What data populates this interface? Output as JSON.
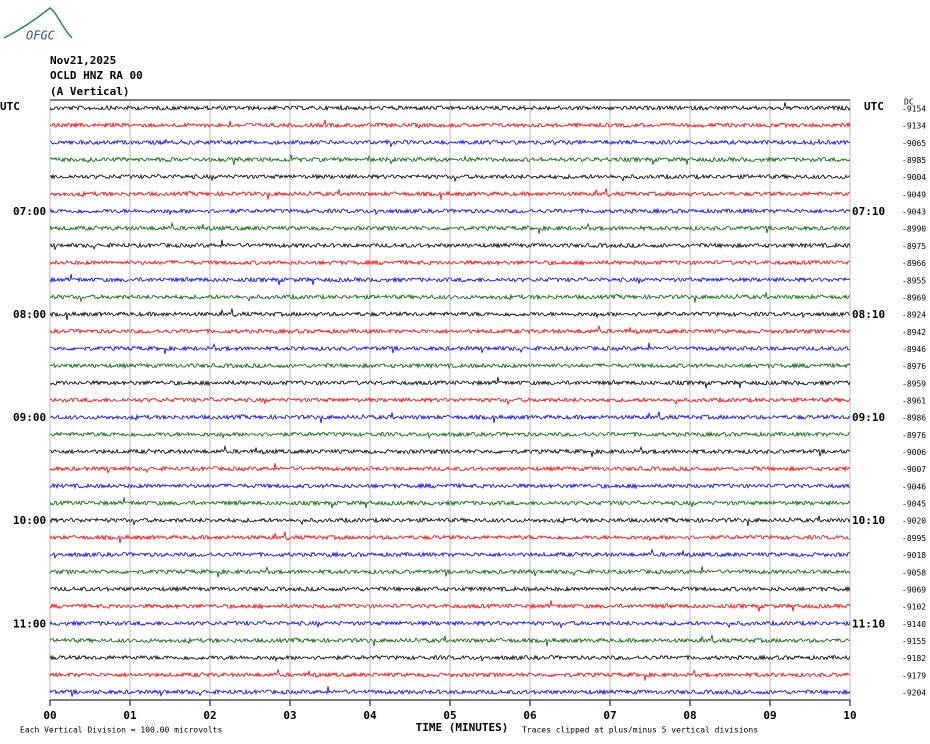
{
  "logo": "OFGC",
  "header": {
    "date": "Nov21,2025",
    "station": "OCLD HNZ RA 00",
    "component": "(A Vertical)"
  },
  "left_labels": {
    "top": "UTC",
    "rows": [
      {
        "row": 6,
        "label": "07:00"
      },
      {
        "row": 12,
        "label": "08:00"
      },
      {
        "row": 18,
        "label": "09:00"
      },
      {
        "row": 24,
        "label": "10:00"
      },
      {
        "row": 30,
        "label": "11:00"
      }
    ]
  },
  "right_labels": {
    "top": "UTC",
    "rows": [
      {
        "row": 6,
        "label": "07:10"
      },
      {
        "row": 12,
        "label": "08:10"
      },
      {
        "row": 18,
        "label": "09:10"
      },
      {
        "row": 24,
        "label": "10:10"
      },
      {
        "row": 30,
        "label": "11:10"
      }
    ]
  },
  "dc_label": "DC",
  "dc_offsets": [
    -9154,
    -9134,
    -9065,
    -8985,
    -9004,
    -9049,
    -9043,
    -8990,
    -8975,
    -8966,
    -8955,
    -8969,
    -8924,
    -8942,
    -8946,
    -8976,
    -8959,
    -8961,
    -8986,
    -8976,
    -9006,
    -9007,
    -9046,
    -9045,
    -9020,
    -8995,
    -9018,
    -9058,
    -9069,
    -9102,
    -9140,
    -9155,
    -9182,
    -9179,
    -9204
  ],
  "trace_colors": [
    "#000000",
    "#ff0000",
    "#0000ff",
    "#006400"
  ],
  "x_ticks": [
    "00",
    "01",
    "02",
    "03",
    "04",
    "05",
    "06",
    "07",
    "08",
    "09",
    "10"
  ],
  "x_label": "TIME (MINUTES)",
  "footer": {
    "scale": "Each Vertical Division =  100.00 microvolts",
    "clip": "Traces clipped at plus/minus 5 vertical divisions"
  }
}
